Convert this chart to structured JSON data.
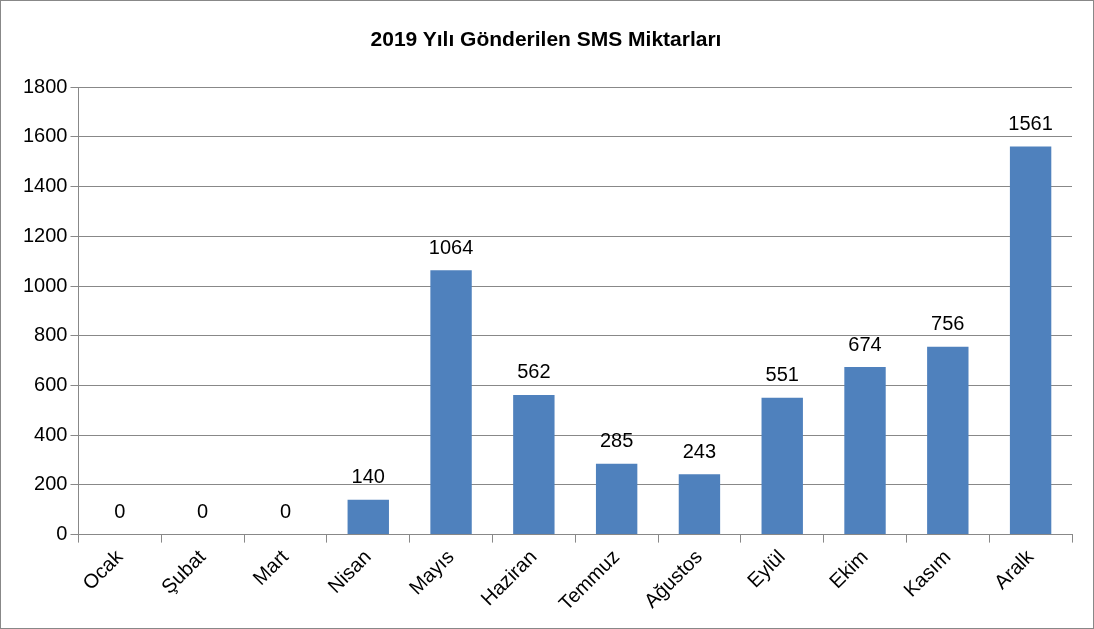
{
  "chart_data": {
    "type": "bar",
    "title": "2019 Yılı Gönderilen SMS Miktarları",
    "categories": [
      "Ocak",
      "Şubat",
      "Mart",
      "Nisan",
      "Mayıs",
      "Haziran",
      "Temmuz",
      "Ağustos",
      "Eylül",
      "Ekim",
      "Kasım",
      "Aralk"
    ],
    "values": [
      0,
      0,
      0,
      140,
      1064,
      562,
      285,
      243,
      551,
      674,
      756,
      1561
    ],
    "color": "#4f81bd",
    "ylim": [
      0,
      1800
    ],
    "yticks": [
      0,
      200,
      400,
      600,
      800,
      1000,
      1200,
      1400,
      1600,
      1800
    ],
    "grid": "y",
    "legend": false,
    "data_labels": true
  }
}
